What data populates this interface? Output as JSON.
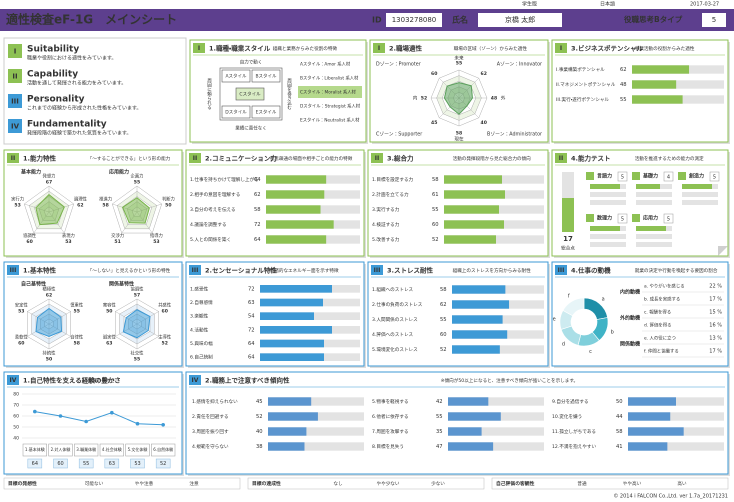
{
  "header": {
    "title": "適性検査eF-1G　メインシート",
    "edition": "学生版",
    "language": "日本語",
    "date": "2017-03-27",
    "id_label": "ID",
    "id": "1303278080",
    "name_label": "氏名",
    "name": "京橋 太郎",
    "type_label": "役職思考Bタイプ",
    "type": "5"
  },
  "intro": [
    {
      "num": "I",
      "title": "Suitability",
      "desc": "職業や役割における適性をみています。"
    },
    {
      "num": "II",
      "title": "Capability",
      "desc": "活動を通して発揮される能力をみています。"
    },
    {
      "num": "III",
      "title": "Personality",
      "desc": "これまでの経験から形成された性格をみています。"
    },
    {
      "num": "IV",
      "title": "Fundamentality",
      "desc": "発揮段階の経験で築かれた気質をみています。"
    }
  ],
  "style_panel": {
    "num": "I",
    "title": "1.職種・職業スタイル",
    "subtitle": "組織と業務からみた役割の特徴",
    "boxes": [
      "Aスタイル",
      "Bスタイル",
      "Cスタイル",
      "Dスタイル",
      "Eスタイル"
    ],
    "axis": [
      "自力で動く",
      "周囲に頼られる",
      "業績に責任なく",
      "周囲を巻き込む"
    ],
    "list": [
      "Aスタイル：Amor 系人材",
      "Bスタイル：Liberalist 系人材",
      "Cスタイル：Moralist 系人材",
      "Dスタイル：Strategist 系人材",
      "Eスタイル：Neutralist 系人材"
    ],
    "highlight": 2
  },
  "zone_panel": {
    "num": "I",
    "title": "2.職場適性",
    "subtitle": "職場の区域（ゾーン）からみた適性",
    "zones": [
      "Dゾーン：Promoter",
      "Aゾーン：Innovator",
      "Cゾーン：Supporter",
      "Bゾーン：Administrator"
    ],
    "axis": [
      "未来",
      "外",
      "現在",
      "内"
    ],
    "values": [
      55,
      62,
      48,
      40,
      58,
      45,
      52,
      60
    ]
  },
  "potential_panel": {
    "num": "I",
    "title": "3.ビジネスポテンシャル",
    "subtitle": "事業活動の役割からみた適性",
    "rows": [
      {
        "label": "I.事業構築ポテンシャル",
        "value": 62
      },
      {
        "label": "II.マネジメントポテンシャル",
        "value": 48
      },
      {
        "label": "III.実行・遂行ポテンシャル",
        "value": 55
      }
    ]
  },
  "ability_panel": {
    "num": "II",
    "title": "1.能力特性",
    "subtitle": "「〜することができる」という形の能力",
    "charts": [
      {
        "name": "基本能力",
        "axes": [
          "発想力",
          "論理性",
          "表現力",
          "協調性",
          "実行力"
        ],
        "values": [
          67,
          62,
          53,
          60,
          53
        ]
      },
      {
        "name": "応用能力",
        "axes": [
          "企画力",
          "判断力",
          "指導力",
          "交渉力",
          "推進力"
        ],
        "values": [
          55,
          50,
          53,
          51,
          58
        ]
      }
    ]
  },
  "communication_panel": {
    "num": "II",
    "title": "2.コミュニケーション力",
    "subtitle": "意思疎通の場面や相手ごとの能力の特徴",
    "rows": [
      {
        "label": "1.仕事を持ちかけて理解し上がる",
        "value": 64
      },
      {
        "label": "2.相手の意図を理解する",
        "value": 62
      },
      {
        "label": "3.自分の考えを伝える",
        "value": 58
      },
      {
        "label": "4.議論を調整する",
        "value": 72
      },
      {
        "label": "5.人との関係を築く",
        "value": 64
      }
    ]
  },
  "total_panel": {
    "num": "II",
    "title": "3.総合力",
    "subtitle": "活動の発揮段階から見た総合力の傾向",
    "rows": [
      {
        "label": "1.目標を設定する力",
        "value": 58
      },
      {
        "label": "2.計画を立てる力",
        "value": 61
      },
      {
        "label": "3.実行する力",
        "value": 55
      },
      {
        "label": "4.検証する力",
        "value": 60
      },
      {
        "label": "5.改善する力",
        "value": 52
      }
    ]
  },
  "test_panel": {
    "num": "II",
    "title": "4.能力テスト",
    "subtitle": "活動を推進するための能力の測定",
    "total": 17,
    "total_label": "総合点",
    "items": [
      {
        "name": "言語力",
        "score": 5
      },
      {
        "name": "基礎力",
        "score": 4
      },
      {
        "name": "創造力",
        "score": 5
      },
      {
        "name": "数理力",
        "score": 5
      },
      {
        "name": "応用力",
        "score": 5
      }
    ]
  },
  "basic_panel": {
    "num": "III",
    "title": "1.基本特性",
    "subtitle": "「〜しない」と見えるかという形の特性",
    "charts": [
      {
        "name": "自己基特性",
        "axes": [
          "積極性",
          "慎重性",
          "自律性",
          "持続性",
          "柔軟性",
          "安定性"
        ],
        "values": [
          62,
          55,
          58,
          50,
          60,
          53
        ]
      },
      {
        "name": "関係基特性",
        "axes": [
          "協調性",
          "共感性",
          "主導性",
          "社交性",
          "誠実性",
          "寛容性"
        ],
        "values": [
          57,
          60,
          52,
          55,
          63,
          50
        ]
      }
    ]
  },
  "sensational_panel": {
    "num": "III",
    "title": "2.センセーショナル特性",
    "subtitle": "情緒的なエネルギー面を示す特徴",
    "rows": [
      {
        "label": "1.感受性",
        "value": 72
      },
      {
        "label": "2.自尊感情",
        "value": 63
      },
      {
        "label": "3.楽観性",
        "value": 54
      },
      {
        "label": "4.活動性",
        "value": 72
      },
      {
        "label": "5.興味の幅",
        "value": 64
      },
      {
        "label": "6.自己統制",
        "value": 64
      }
    ]
  },
  "stress_panel": {
    "num": "III",
    "title": "3.ストレス耐性",
    "subtitle": "組織上のストレスを方向からみる耐性",
    "rows": [
      {
        "label": "1.組織へのストレス",
        "value": 58
      },
      {
        "label": "2.仕事の負荷のストレス",
        "value": 62
      },
      {
        "label": "3.人間関係のストレス",
        "value": 55
      },
      {
        "label": "4.評価へのストレス",
        "value": 60
      },
      {
        "label": "5.環境変化のストレス",
        "value": 52
      }
    ]
  },
  "motive_panel": {
    "num": "III",
    "title": "4.仕事の動機",
    "subtitle": "就業の決定や行動を喚起する要因の割合",
    "groups": [
      "内的動機",
      "外的動機",
      "関係動機"
    ],
    "segments": [
      {
        "key": "a",
        "label": "a. やりがいを感じる",
        "value": 22,
        "value_label": "22 %"
      },
      {
        "key": "b",
        "label": "b. 成長を実感する",
        "value": 17,
        "value_label": "17 %"
      },
      {
        "key": "c",
        "label": "c. 報酬を得る",
        "value": 15,
        "value_label": "15 %"
      },
      {
        "key": "d",
        "label": "d. 評価を得る",
        "value": 16,
        "value_label": "16 %"
      },
      {
        "key": "e",
        "label": "e. 人の役に立つ",
        "value": 13,
        "value_label": "13 %"
      },
      {
        "key": "f",
        "label": "f. 仲間と協働する",
        "value": 17,
        "value_label": "17 %"
      }
    ]
  },
  "experience_panel": {
    "num": "IV",
    "title": "1.自己特性を支える経験の豊かさ",
    "subtitle": "体験の豊かさ",
    "ylim": [
      40,
      80
    ],
    "yticks": [
      40,
      50,
      60,
      70,
      80
    ],
    "categories": [
      "1.基本体験",
      "2.対人体験",
      "3.職業体験",
      "4.社会体験",
      "5.文化体験",
      "6.自然体験"
    ],
    "values": [
      64,
      60,
      55,
      63,
      53,
      52
    ]
  },
  "caution_panel": {
    "num": "IV",
    "title": "2.職務上で注意すべき傾向性",
    "subtitle": "※傾向が50以上になると、注意すべき傾向が強いことを示します。",
    "columns": [
      [
        {
          "label": "1.感情を抑えられない",
          "value": 45
        },
        {
          "label": "2.責任を回避する",
          "value": 52
        },
        {
          "label": "3.周囲を振り回す",
          "value": 40
        },
        {
          "label": "4.規範を守らない",
          "value": 38
        }
      ],
      [
        {
          "label": "5.物事を軽視する",
          "value": 42
        },
        {
          "label": "6.他者に依存する",
          "value": 55
        },
        {
          "label": "7.周囲を攻撃する",
          "value": 35
        },
        {
          "label": "8.目標を見失う",
          "value": 47
        }
      ],
      [
        {
          "label": "9.自分を過信する",
          "value": 50
        },
        {
          "label": "10.変化を嫌う",
          "value": 44
        },
        {
          "label": "11.孤立しがちである",
          "value": 58
        },
        {
          "label": "12.不満を抱えやすい",
          "value": 41
        }
      ]
    ]
  },
  "footer": [
    {
      "label": "目標の発想性",
      "scale": [
        "可能ない",
        "やや注意",
        "注意"
      ]
    },
    {
      "label": "目標の達成性",
      "scale": [
        "なし",
        "やや少ない",
        "少ない"
      ]
    },
    {
      "label": "自己評価の客観性",
      "scale": [
        "普通",
        "やや高い",
        "高い"
      ]
    }
  ],
  "copyright": "© 2014 i FALCON Co.,Ltd.  ver 1.7a_20171231"
}
